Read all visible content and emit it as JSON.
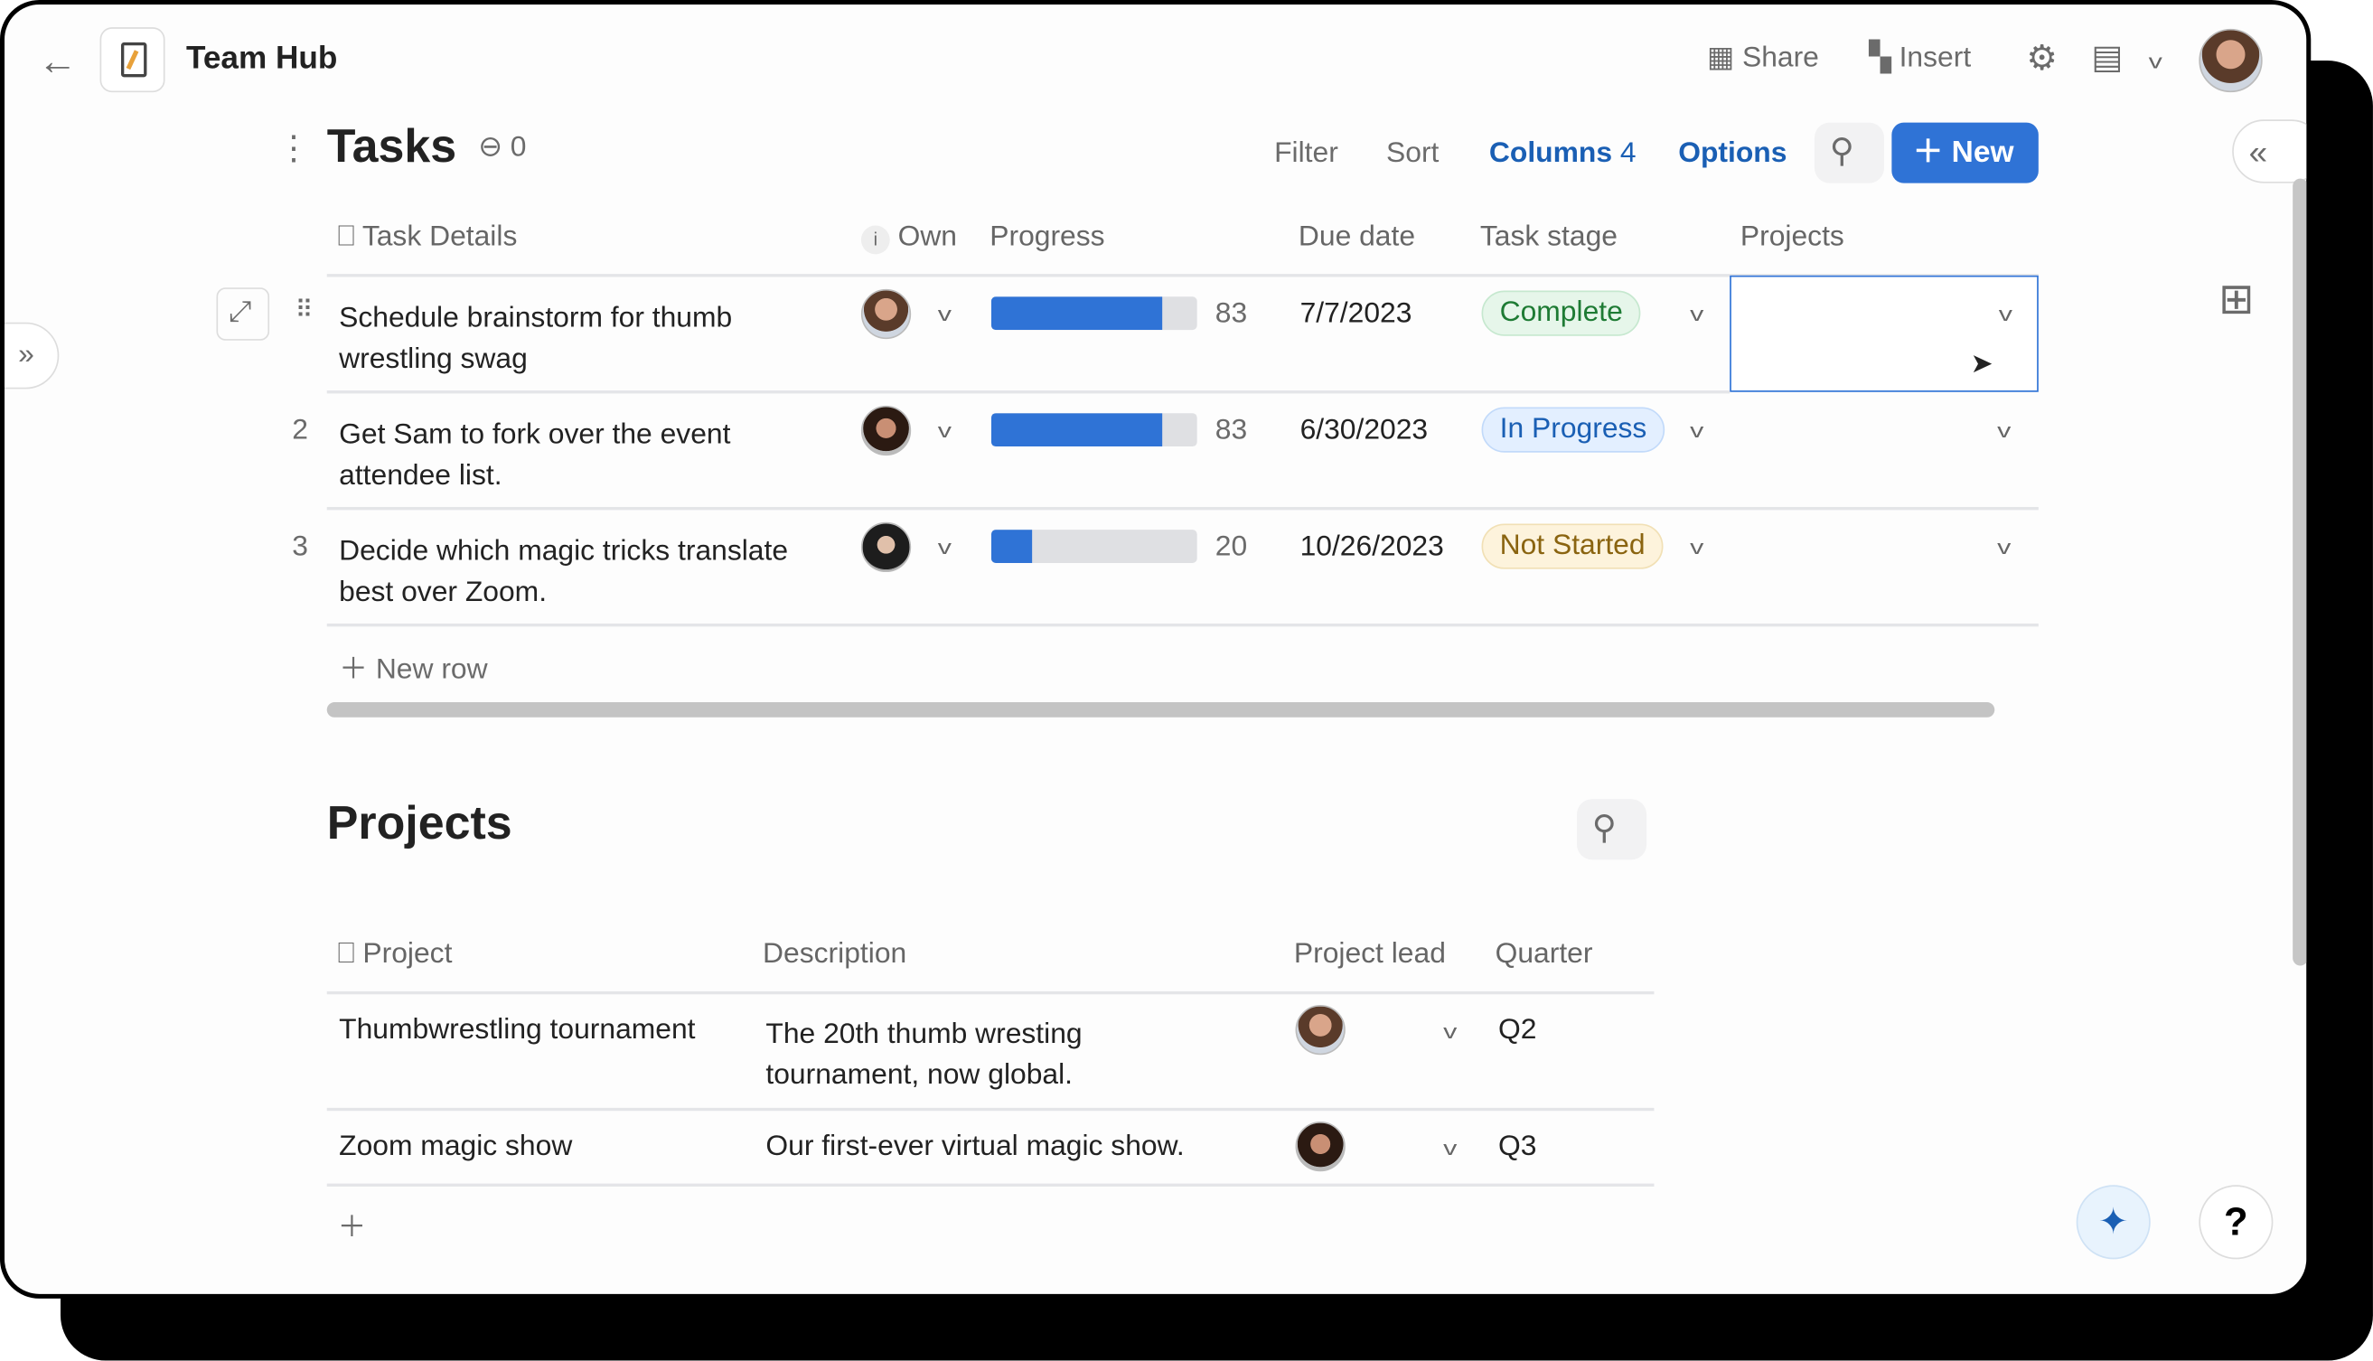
{
  "app": {
    "title": "Team Hub",
    "share": "Share",
    "insert": "Insert"
  },
  "tasks": {
    "title": "Tasks",
    "link_count": "0",
    "toolbar": {
      "filter": "Filter",
      "sort": "Sort",
      "columns": "Columns",
      "columns_count": "4",
      "options": "Options",
      "new": "New"
    },
    "columns": [
      "Task Details",
      "Own",
      "Progress",
      "Due date",
      "Task stage",
      "Projects"
    ],
    "rows": [
      {
        "num": "",
        "name_l1": "Schedule brainstorm for thumb",
        "name_l2": "wrestling swag",
        "progress": 83,
        "progress_label": "83",
        "due": "7/7/2023",
        "stage": "Complete",
        "project": ""
      },
      {
        "num": "2",
        "name_l1": "Get Sam to fork over the event",
        "name_l2": "attendee list.",
        "progress": 83,
        "progress_label": "83",
        "due": "6/30/2023",
        "stage": "In Progress",
        "project": ""
      },
      {
        "num": "3",
        "name_l1": "Decide which magic tricks translate",
        "name_l2": "best over Zoom.",
        "progress": 20,
        "progress_label": "20",
        "due": "10/26/2023",
        "stage": "Not Started",
        "project": ""
      }
    ],
    "new_row": "New row"
  },
  "projects": {
    "title": "Projects",
    "columns": [
      "Project",
      "Description",
      "Project lead",
      "Quarter"
    ],
    "rows": [
      {
        "name": "Thumbwrestling tournament",
        "desc_l1": "The 20th thumb wresting",
        "desc_l2": "tournament, now global.",
        "quarter": "Q2"
      },
      {
        "name": "Zoom magic show",
        "desc_l1": "Our first-ever virtual magic show.",
        "desc_l2": "",
        "quarter": "Q3"
      }
    ]
  },
  "colors": {
    "accent": "#2f73d6",
    "complete": "#1e7b34",
    "in_progress": "#1a5fb4",
    "not_started": "#8a6410"
  },
  "help": "?"
}
